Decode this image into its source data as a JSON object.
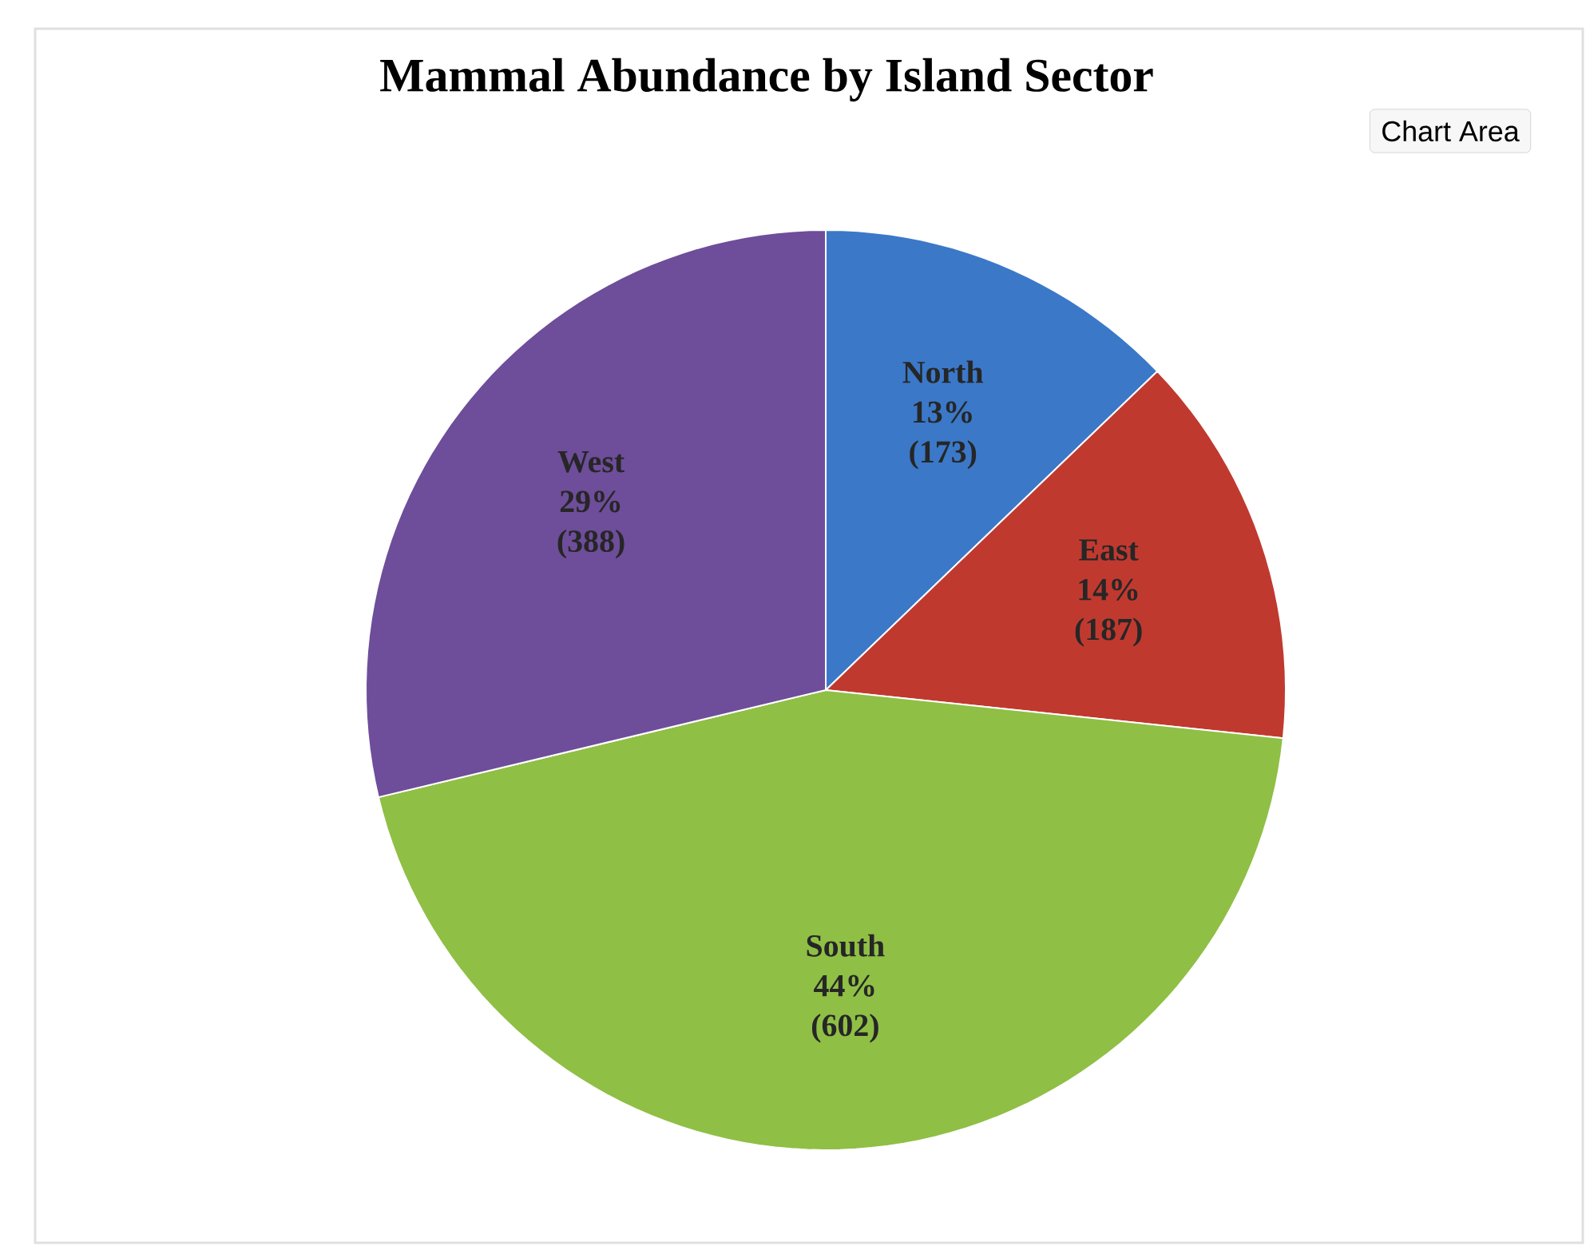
{
  "chart_data": {
    "type": "pie",
    "title": "Mammal Abundance by Island Sector",
    "categories": [
      "North",
      "East",
      "South",
      "West"
    ],
    "values": [
      173,
      187,
      602,
      388
    ],
    "value_labels": [
      "13% (173)",
      "14% (187)",
      "44% (602)",
      "29% (388)"
    ],
    "colors": [
      "#3b78c8",
      "#c0392f",
      "#8fbf45",
      "#6e4d9a"
    ],
    "annotations": [
      "Chart Area"
    ]
  }
}
